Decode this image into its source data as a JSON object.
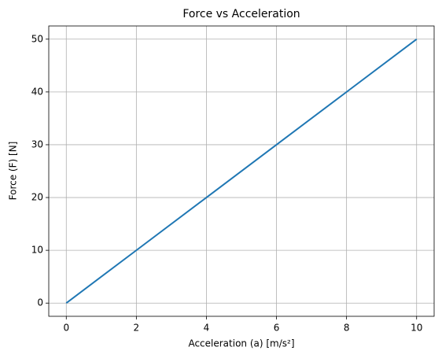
{
  "chart_data": {
    "type": "line",
    "title": "Force vs Acceleration",
    "x_label": "Acceleration (a) [m/s²]",
    "y_label": "Force (F) [N]",
    "x": [
      0,
      2,
      4,
      6,
      8,
      10
    ],
    "series": [
      {
        "name": "Force",
        "color": "#1f77b4",
        "values": [
          0,
          10,
          20,
          30,
          40,
          50
        ]
      }
    ],
    "xlim": [
      -0.5,
      10.5
    ],
    "ylim": [
      -2.5,
      52.5
    ],
    "xticks": [
      0,
      2,
      4,
      6,
      8,
      10
    ],
    "yticks": [
      0,
      10,
      20,
      30,
      40,
      50
    ],
    "grid": true
  }
}
